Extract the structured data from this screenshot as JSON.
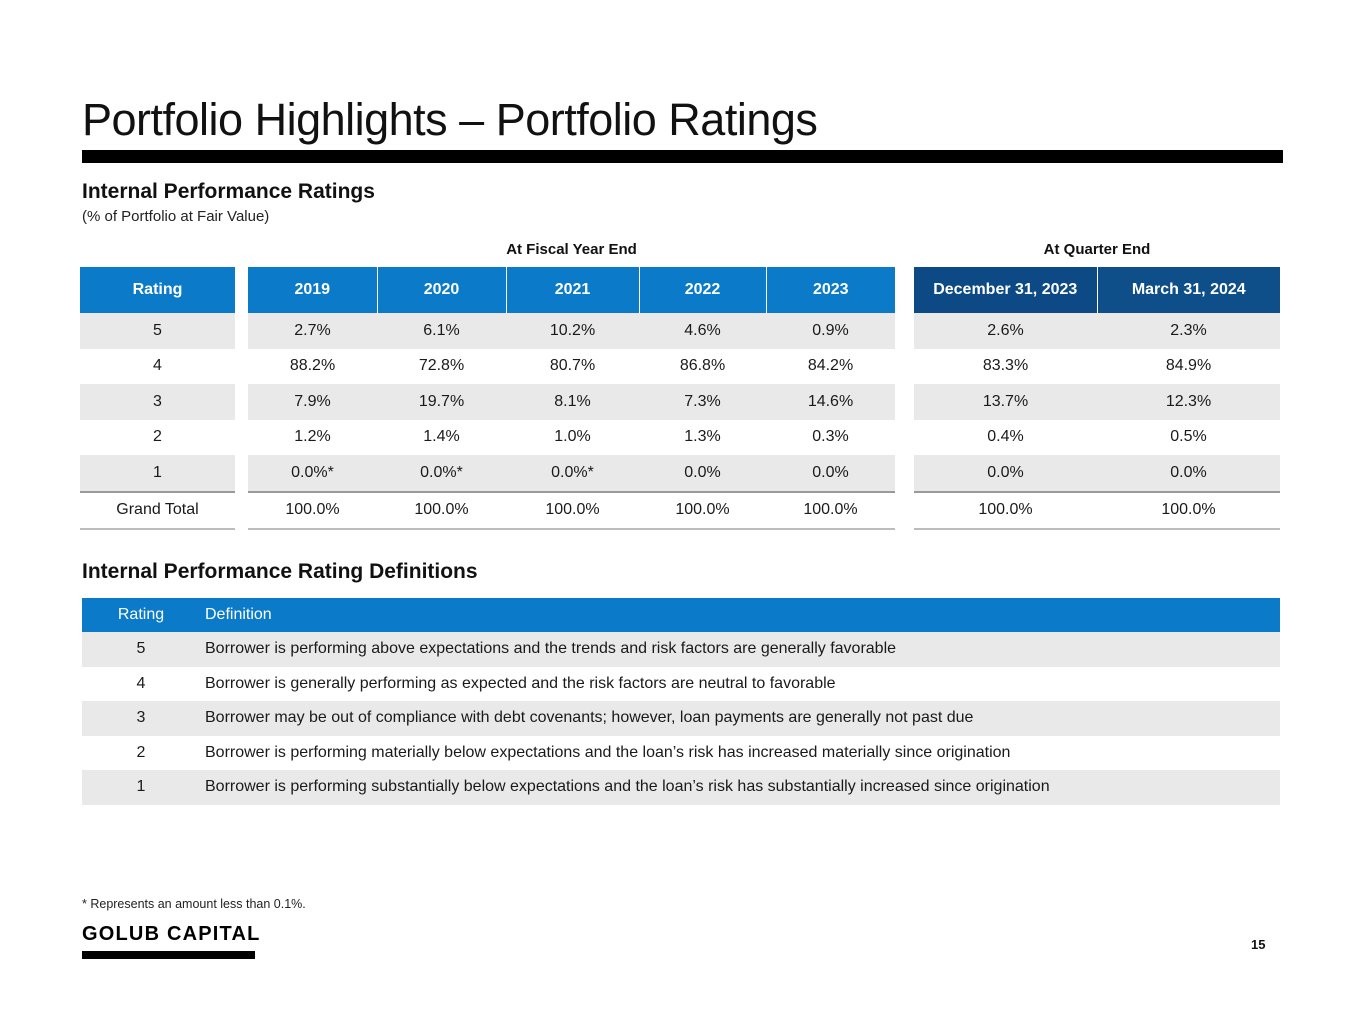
{
  "title": "Portfolio Highlights – Portfolio Ratings",
  "ratings": {
    "heading": "Internal Performance Ratings",
    "subheading": "(% of Portfolio at Fair Value)",
    "fiscal_group_label": "At Fiscal Year End",
    "quarter_group_label": "At Quarter End",
    "rating_header": "Rating",
    "fiscal_headers": [
      "2019",
      "2020",
      "2021",
      "2022",
      "2023"
    ],
    "quarter_headers": [
      "December 31, 2023",
      "March 31, 2024"
    ],
    "rows": [
      {
        "rating": "5",
        "fiscal": [
          "2.7%",
          "6.1%",
          "10.2%",
          "4.6%",
          "0.9%"
        ],
        "quarter": [
          "2.6%",
          "2.3%"
        ]
      },
      {
        "rating": "4",
        "fiscal": [
          "88.2%",
          "72.8%",
          "80.7%",
          "86.8%",
          "84.2%"
        ],
        "quarter": [
          "83.3%",
          "84.9%"
        ]
      },
      {
        "rating": "3",
        "fiscal": [
          "7.9%",
          "19.7%",
          "8.1%",
          "7.3%",
          "14.6%"
        ],
        "quarter": [
          "13.7%",
          "12.3%"
        ]
      },
      {
        "rating": "2",
        "fiscal": [
          "1.2%",
          "1.4%",
          "1.0%",
          "1.3%",
          "0.3%"
        ],
        "quarter": [
          "0.4%",
          "0.5%"
        ]
      },
      {
        "rating": "1",
        "fiscal": [
          "0.0%*",
          "0.0%*",
          "0.0%*",
          "0.0%",
          "0.0%"
        ],
        "quarter": [
          "0.0%",
          "0.0%"
        ]
      },
      {
        "rating": "Grand Total",
        "fiscal": [
          "100.0%",
          "100.0%",
          "100.0%",
          "100.0%",
          "100.0%"
        ],
        "quarter": [
          "100.0%",
          "100.0%"
        ]
      }
    ]
  },
  "definitions": {
    "heading": "Internal Performance Rating Definitions",
    "headers": [
      "Rating",
      "Definition"
    ],
    "rows": [
      {
        "rating": "5",
        "definition": "Borrower is performing above expectations and the trends and risk factors are generally favorable"
      },
      {
        "rating": "4",
        "definition": "Borrower is generally performing as expected and the risk factors are neutral to favorable"
      },
      {
        "rating": "3",
        "definition": "Borrower may be out of compliance with debt covenants; however, loan payments are generally not past due"
      },
      {
        "rating": "2",
        "definition": "Borrower is performing materially below expectations and the loan’s risk has increased materially since origination"
      },
      {
        "rating": "1",
        "definition": "Borrower is performing substantially below expectations and the loan’s risk has substantially increased since origination"
      }
    ]
  },
  "footnote": "* Represents an amount less than 0.1%.",
  "logo": "GOLUB CAPITAL",
  "page_number": "15"
}
